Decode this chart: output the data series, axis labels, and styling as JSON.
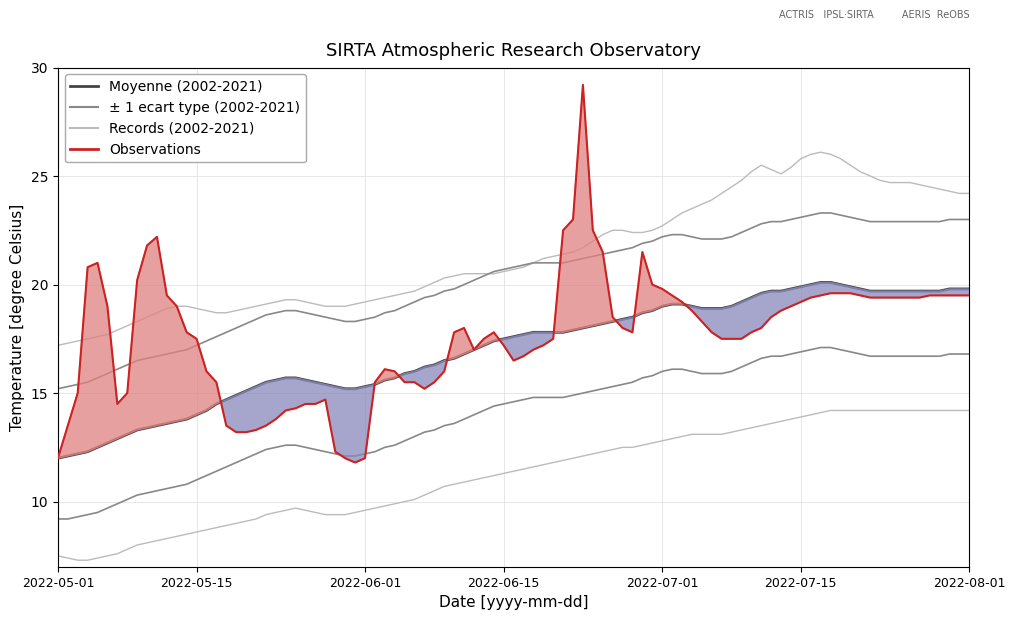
{
  "title": "SIRTA Atmospheric Research Observatory",
  "xlabel": "Date [yyyy-mm-dd]",
  "ylabel": "Temperature [degree Celsius]",
  "ylim": [
    7,
    30
  ],
  "yticks": [
    10,
    15,
    20,
    25,
    30
  ],
  "date_start": "2022-05-01",
  "date_end": "2022-08-01",
  "legend_labels": [
    "Moyenne (2002-2021)",
    "± 1 ecart type (2002-2021)",
    "Records (2002-2021)",
    "Observations"
  ],
  "color_mean": "#444444",
  "color_std": "#888888",
  "color_records": "#bbbbbb",
  "color_obs_line": "#cc2222",
  "color_obs_fill_above": "#e08080",
  "color_obs_fill_below": "#8888bb",
  "mean_values": [
    12.0,
    12.1,
    12.2,
    12.3,
    12.5,
    12.7,
    12.9,
    13.1,
    13.3,
    13.4,
    13.5,
    13.6,
    13.7,
    13.8,
    14.0,
    14.2,
    14.5,
    14.7,
    14.9,
    15.1,
    15.3,
    15.5,
    15.6,
    15.7,
    15.7,
    15.6,
    15.5,
    15.4,
    15.3,
    15.2,
    15.2,
    15.3,
    15.4,
    15.6,
    15.7,
    15.9,
    16.0,
    16.2,
    16.3,
    16.5,
    16.6,
    16.8,
    17.0,
    17.2,
    17.4,
    17.5,
    17.6,
    17.7,
    17.8,
    17.8,
    17.8,
    17.8,
    17.9,
    18.0,
    18.1,
    18.2,
    18.3,
    18.4,
    18.5,
    18.7,
    18.8,
    19.0,
    19.1,
    19.1,
    19.0,
    18.9,
    18.9,
    18.9,
    19.0,
    19.2,
    19.4,
    19.6,
    19.7,
    19.7,
    19.8,
    19.9,
    20.0,
    20.1,
    20.1,
    20.0,
    19.9,
    19.8,
    19.7,
    19.7,
    19.7,
    19.7,
    19.7,
    19.7,
    19.7,
    19.7,
    19.8,
    19.8,
    19.8
  ],
  "std_upper": [
    15.2,
    15.3,
    15.4,
    15.5,
    15.7,
    15.9,
    16.1,
    16.3,
    16.5,
    16.6,
    16.7,
    16.8,
    16.9,
    17.0,
    17.2,
    17.4,
    17.6,
    17.8,
    18.0,
    18.2,
    18.4,
    18.6,
    18.7,
    18.8,
    18.8,
    18.7,
    18.6,
    18.5,
    18.4,
    18.3,
    18.3,
    18.4,
    18.5,
    18.7,
    18.8,
    19.0,
    19.2,
    19.4,
    19.5,
    19.7,
    19.8,
    20.0,
    20.2,
    20.4,
    20.6,
    20.7,
    20.8,
    20.9,
    21.0,
    21.0,
    21.0,
    21.0,
    21.1,
    21.2,
    21.3,
    21.4,
    21.5,
    21.6,
    21.7,
    21.9,
    22.0,
    22.2,
    22.3,
    22.3,
    22.2,
    22.1,
    22.1,
    22.1,
    22.2,
    22.4,
    22.6,
    22.8,
    22.9,
    22.9,
    23.0,
    23.1,
    23.2,
    23.3,
    23.3,
    23.2,
    23.1,
    23.0,
    22.9,
    22.9,
    22.9,
    22.9,
    22.9,
    22.9,
    22.9,
    22.9,
    23.0,
    23.0,
    23.0
  ],
  "std_lower": [
    9.2,
    9.2,
    9.3,
    9.4,
    9.5,
    9.7,
    9.9,
    10.1,
    10.3,
    10.4,
    10.5,
    10.6,
    10.7,
    10.8,
    11.0,
    11.2,
    11.4,
    11.6,
    11.8,
    12.0,
    12.2,
    12.4,
    12.5,
    12.6,
    12.6,
    12.5,
    12.4,
    12.3,
    12.2,
    12.1,
    12.1,
    12.2,
    12.3,
    12.5,
    12.6,
    12.8,
    13.0,
    13.2,
    13.3,
    13.5,
    13.6,
    13.8,
    14.0,
    14.2,
    14.4,
    14.5,
    14.6,
    14.7,
    14.8,
    14.8,
    14.8,
    14.8,
    14.9,
    15.0,
    15.1,
    15.2,
    15.3,
    15.4,
    15.5,
    15.7,
    15.8,
    16.0,
    16.1,
    16.1,
    16.0,
    15.9,
    15.9,
    15.9,
    16.0,
    16.2,
    16.4,
    16.6,
    16.7,
    16.7,
    16.8,
    16.9,
    17.0,
    17.1,
    17.1,
    17.0,
    16.9,
    16.8,
    16.7,
    16.7,
    16.7,
    16.7,
    16.7,
    16.7,
    16.7,
    16.7,
    16.8,
    16.8,
    16.8
  ],
  "rec_upper": [
    17.2,
    17.3,
    17.4,
    17.5,
    17.6,
    17.7,
    17.9,
    18.1,
    18.3,
    18.5,
    18.7,
    18.9,
    19.0,
    19.0,
    18.9,
    18.8,
    18.7,
    18.7,
    18.8,
    18.9,
    19.0,
    19.1,
    19.2,
    19.3,
    19.3,
    19.2,
    19.1,
    19.0,
    19.0,
    19.0,
    19.1,
    19.2,
    19.3,
    19.4,
    19.5,
    19.6,
    19.7,
    19.9,
    20.1,
    20.3,
    20.4,
    20.5,
    20.5,
    20.5,
    20.5,
    20.6,
    20.7,
    20.8,
    21.0,
    21.2,
    21.3,
    21.4,
    21.5,
    21.7,
    22.0,
    22.3,
    22.5,
    22.5,
    22.4,
    22.4,
    22.5,
    22.7,
    23.0,
    23.3,
    23.5,
    23.7,
    23.9,
    24.2,
    24.5,
    24.8,
    25.2,
    25.5,
    25.3,
    25.1,
    25.4,
    25.8,
    26.0,
    26.1,
    26.0,
    25.8,
    25.5,
    25.2,
    25.0,
    24.8,
    24.7,
    24.7,
    24.7,
    24.6,
    24.5,
    24.4,
    24.3,
    24.2,
    24.2
  ],
  "rec_lower": [
    7.5,
    7.4,
    7.3,
    7.3,
    7.4,
    7.5,
    7.6,
    7.8,
    8.0,
    8.1,
    8.2,
    8.3,
    8.4,
    8.5,
    8.6,
    8.7,
    8.8,
    8.9,
    9.0,
    9.1,
    9.2,
    9.4,
    9.5,
    9.6,
    9.7,
    9.6,
    9.5,
    9.4,
    9.4,
    9.4,
    9.5,
    9.6,
    9.7,
    9.8,
    9.9,
    10.0,
    10.1,
    10.3,
    10.5,
    10.7,
    10.8,
    10.9,
    11.0,
    11.1,
    11.2,
    11.3,
    11.4,
    11.5,
    11.6,
    11.7,
    11.8,
    11.9,
    12.0,
    12.1,
    12.2,
    12.3,
    12.4,
    12.5,
    12.5,
    12.6,
    12.7,
    12.8,
    12.9,
    13.0,
    13.1,
    13.1,
    13.1,
    13.1,
    13.2,
    13.3,
    13.4,
    13.5,
    13.6,
    13.7,
    13.8,
    13.9,
    14.0,
    14.1,
    14.2,
    14.2,
    14.2,
    14.2,
    14.2,
    14.2,
    14.2,
    14.2,
    14.2,
    14.2,
    14.2,
    14.2,
    14.2,
    14.2,
    14.2
  ],
  "obs_values": [
    12.0,
    13.5,
    15.0,
    20.8,
    21.0,
    19.0,
    14.5,
    15.0,
    20.2,
    21.8,
    22.2,
    19.5,
    19.0,
    17.8,
    17.5,
    16.0,
    15.5,
    13.5,
    13.2,
    13.2,
    13.3,
    13.5,
    13.8,
    14.2,
    14.3,
    14.5,
    14.5,
    14.7,
    12.3,
    12.0,
    11.8,
    12.0,
    15.5,
    16.1,
    16.0,
    15.5,
    15.5,
    15.2,
    15.5,
    16.0,
    17.8,
    18.0,
    17.0,
    17.5,
    17.8,
    17.2,
    16.5,
    16.7,
    17.0,
    17.2,
    17.5,
    22.5,
    23.0,
    29.2,
    22.5,
    21.5,
    18.5,
    18.0,
    17.8,
    21.5,
    20.0,
    19.8,
    19.5,
    19.2,
    18.8,
    18.3,
    17.8,
    17.5,
    17.5,
    17.5,
    17.8,
    18.0,
    18.5,
    18.8,
    19.0,
    19.2,
    19.4,
    19.5,
    19.6,
    19.6,
    19.6,
    19.5,
    19.4,
    19.4,
    19.4,
    19.4,
    19.4,
    19.4,
    19.5,
    19.5,
    19.5,
    19.5,
    19.5
  ]
}
